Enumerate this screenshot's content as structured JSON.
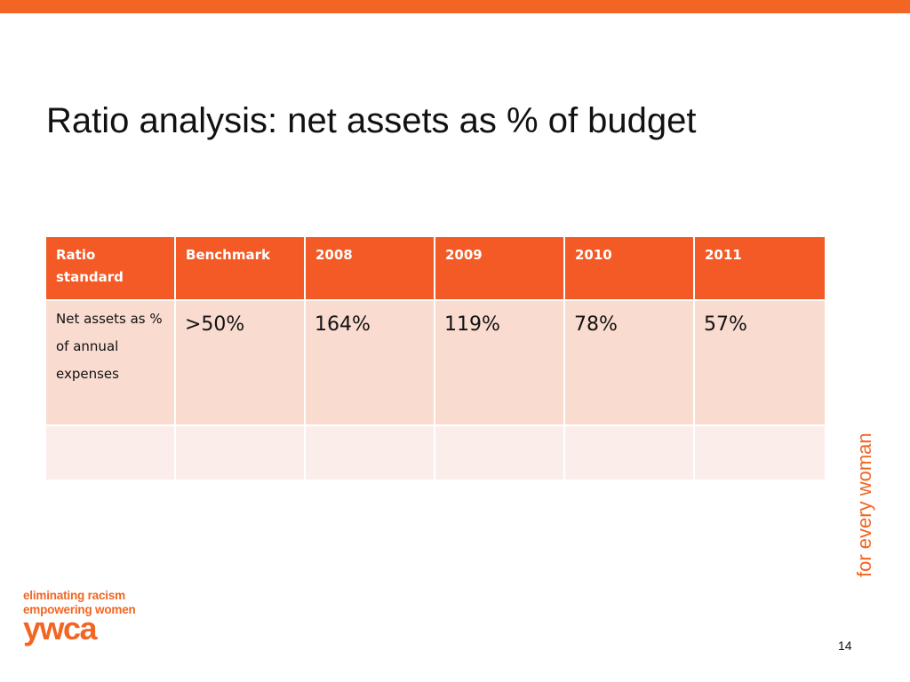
{
  "slide": {
    "title": "Ratio analysis: net assets as % of budget",
    "page_number": "14",
    "tagline": "for every woman"
  },
  "table": {
    "headers": [
      "Ratio standard",
      "Benchmark",
      "2008",
      "2009",
      "2010",
      "2011"
    ],
    "rows": [
      [
        "Net assets as % of annual expenses",
        ">50%",
        "164%",
        "119%",
        "78%",
        "57%"
      ],
      [
        "",
        "",
        "",
        "",
        "",
        ""
      ]
    ]
  },
  "logo": {
    "line1": "eliminating racism",
    "line2": "empowering women",
    "wordmark": "ywca"
  },
  "colors": {
    "accent": "#f26522",
    "header_fill": "#f45a25",
    "row1_fill": "#f9dbd0",
    "row2_fill": "#fbeeea"
  }
}
